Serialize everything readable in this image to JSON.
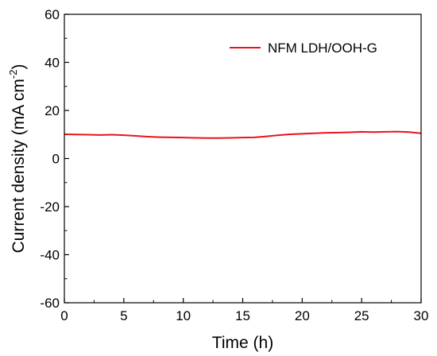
{
  "chart_data": {
    "type": "line",
    "title": "",
    "xlabel": "Time (h)",
    "ylabel_prefix": "Current density (mA cm",
    "ylabel_sup": "-2",
    "ylabel_suffix": ")",
    "xlim": [
      0,
      30
    ],
    "ylim": [
      -60,
      60
    ],
    "xticks": [
      0,
      5,
      10,
      15,
      20,
      25,
      30
    ],
    "yticks": [
      -60,
      -40,
      -20,
      0,
      20,
      40,
      60
    ],
    "grid": false,
    "legend_position": "top-right",
    "series": [
      {
        "name": "NFM LDH/OOH-G",
        "color": "#e8141c",
        "x": [
          0,
          1,
          2,
          3,
          4,
          5,
          6,
          7,
          8,
          9,
          10,
          11,
          12,
          13,
          14,
          15,
          16,
          17,
          18,
          19,
          20,
          21,
          22,
          23,
          24,
          25,
          26,
          27,
          28,
          29,
          30
        ],
        "y": [
          10.1,
          10.0,
          9.9,
          9.8,
          9.9,
          9.7,
          9.4,
          9.1,
          8.9,
          8.8,
          8.7,
          8.6,
          8.5,
          8.5,
          8.6,
          8.7,
          8.8,
          9.2,
          9.7,
          10.1,
          10.3,
          10.5,
          10.7,
          10.8,
          10.9,
          11.1,
          11.0,
          11.1,
          11.2,
          11.0,
          10.5
        ]
      }
    ]
  }
}
